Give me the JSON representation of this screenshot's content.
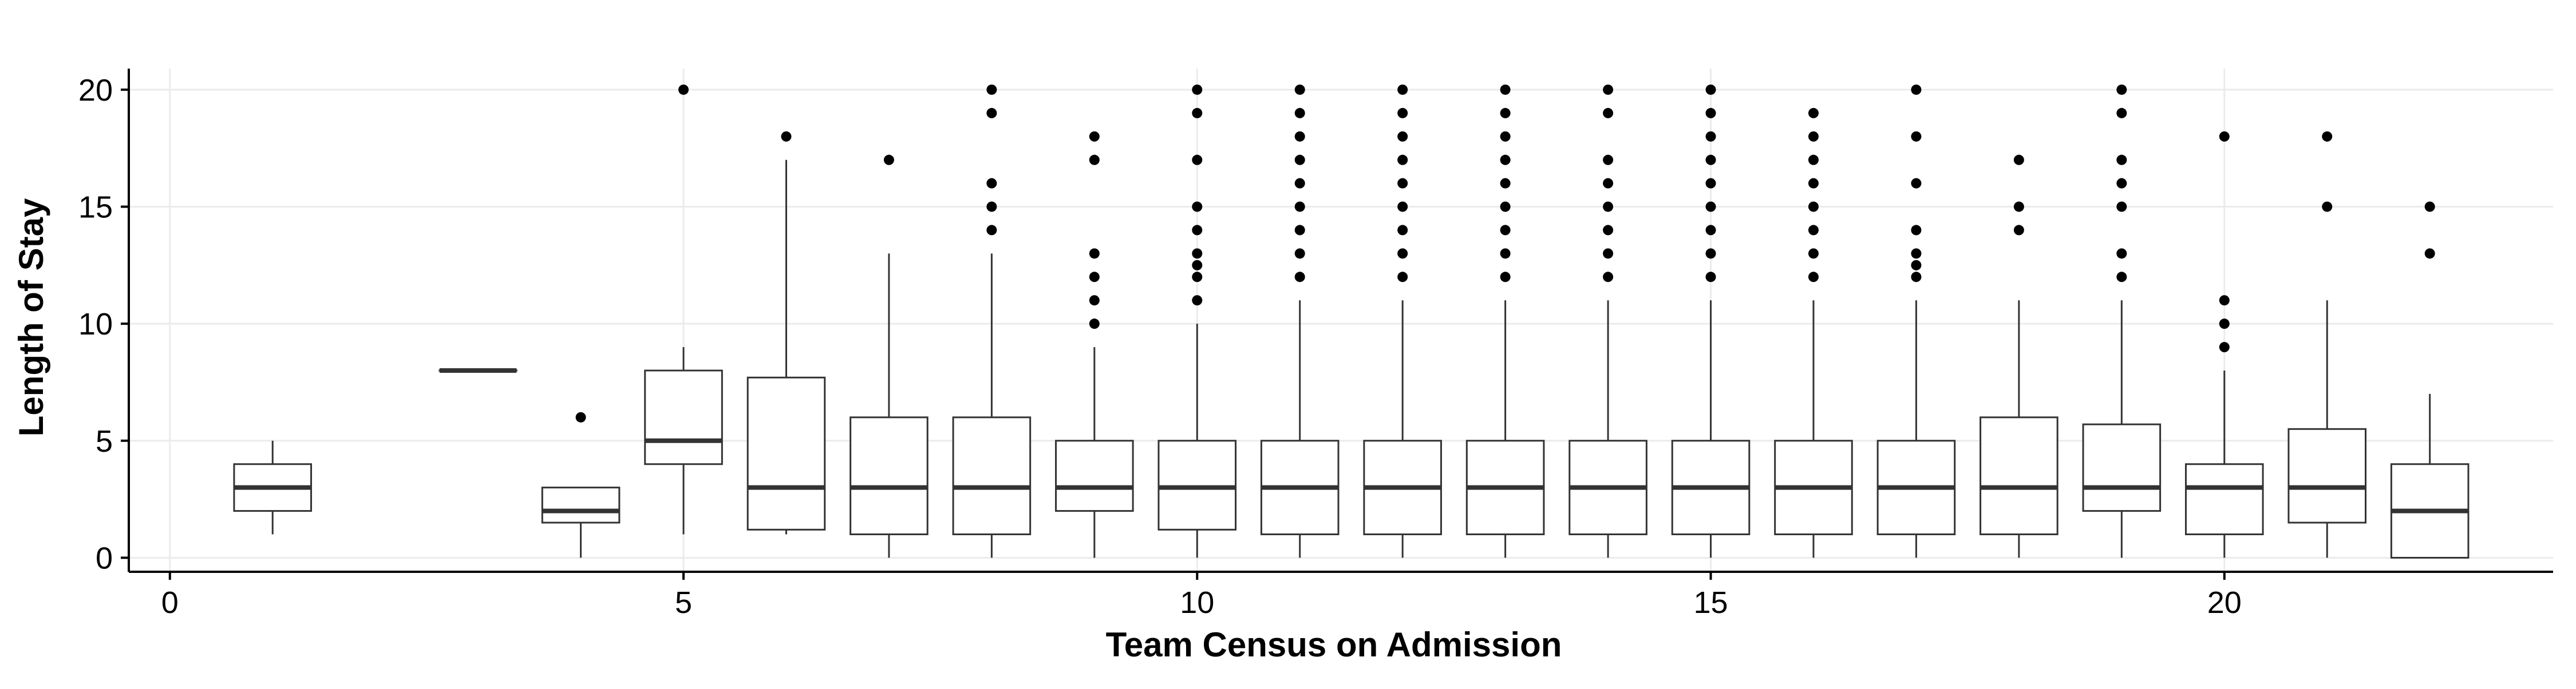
{
  "chart_data": {
    "type": "boxplot",
    "title": "",
    "xlabel": "Team Census on Admission",
    "ylabel": "Length of Stay",
    "xlim": [
      -0.4,
      23.2
    ],
    "ylim": [
      -0.6,
      20.9
    ],
    "xticks": [
      0,
      5,
      10,
      15,
      20
    ],
    "yticks": [
      0,
      5,
      10,
      15,
      20
    ],
    "grid": true,
    "legend": "none",
    "colors": {
      "box_fill": "#ffffff",
      "box_stroke": "#333333",
      "median": "#333333",
      "outlier": "#000000",
      "grid": "#ebebeb",
      "axis": "#000000"
    },
    "boxes": [
      {
        "x": 1,
        "q1": 2,
        "median": 3,
        "q3": 4,
        "low": 1,
        "high": 5,
        "outliers": []
      },
      {
        "x": 3,
        "q1": 8,
        "median": 8,
        "q3": 8,
        "low": 8,
        "high": 8,
        "outliers": []
      },
      {
        "x": 4,
        "q1": 1.5,
        "median": 2,
        "q3": 3,
        "low": 0,
        "high": 3,
        "outliers": [
          6
        ]
      },
      {
        "x": 5,
        "q1": 4,
        "median": 5,
        "q3": 8,
        "low": 1,
        "high": 9,
        "outliers": [
          20
        ]
      },
      {
        "x": 6,
        "q1": 1.2,
        "median": 3,
        "q3": 7.7,
        "low": 1,
        "high": 17,
        "outliers": [
          18
        ]
      },
      {
        "x": 7,
        "q1": 1,
        "median": 3,
        "q3": 6,
        "low": 0,
        "high": 13,
        "outliers": [
          17
        ]
      },
      {
        "x": 8,
        "q1": 1,
        "median": 3,
        "q3": 6,
        "low": 0,
        "high": 13,
        "outliers": [
          14,
          15,
          16,
          19,
          20
        ]
      },
      {
        "x": 9,
        "q1": 2,
        "median": 3,
        "q3": 5,
        "low": 0,
        "high": 9,
        "outliers": [
          10,
          11,
          12,
          13,
          17,
          18
        ]
      },
      {
        "x": 10,
        "q1": 1.2,
        "median": 3,
        "q3": 5,
        "low": 0,
        "high": 10,
        "outliers": [
          11,
          12,
          12.5,
          13,
          14,
          15,
          17,
          19,
          20
        ]
      },
      {
        "x": 11,
        "q1": 1,
        "median": 3,
        "q3": 5,
        "low": 0,
        "high": 11,
        "outliers": [
          12,
          13,
          14,
          15,
          16,
          17,
          18,
          19,
          20
        ]
      },
      {
        "x": 12,
        "q1": 1,
        "median": 3,
        "q3": 5,
        "low": 0,
        "high": 11,
        "outliers": [
          12,
          13,
          14,
          15,
          16,
          17,
          18,
          19,
          20
        ]
      },
      {
        "x": 13,
        "q1": 1,
        "median": 3,
        "q3": 5,
        "low": 0,
        "high": 11,
        "outliers": [
          12,
          13,
          14,
          15,
          16,
          17,
          18,
          19,
          20
        ]
      },
      {
        "x": 14,
        "q1": 1,
        "median": 3,
        "q3": 5,
        "low": 0,
        "high": 11,
        "outliers": [
          12,
          13,
          14,
          15,
          16,
          17,
          19,
          20
        ]
      },
      {
        "x": 15,
        "q1": 1,
        "median": 3,
        "q3": 5,
        "low": 0,
        "high": 11,
        "outliers": [
          12,
          13,
          14,
          15,
          16,
          17,
          18,
          19,
          20
        ]
      },
      {
        "x": 16,
        "q1": 1,
        "median": 3,
        "q3": 5,
        "low": 0,
        "high": 11,
        "outliers": [
          12,
          13,
          14,
          15,
          16,
          17,
          18,
          19
        ]
      },
      {
        "x": 17,
        "q1": 1,
        "median": 3,
        "q3": 5,
        "low": 0,
        "high": 11,
        "outliers": [
          12,
          12.5,
          13,
          14,
          16,
          18,
          20
        ]
      },
      {
        "x": 18,
        "q1": 1,
        "median": 3,
        "q3": 6,
        "low": 0,
        "high": 11,
        "outliers": [
          14,
          15,
          17
        ]
      },
      {
        "x": 19,
        "q1": 2,
        "median": 3,
        "q3": 5.7,
        "low": 0,
        "high": 11,
        "outliers": [
          12,
          13,
          15,
          16,
          17,
          19,
          20
        ]
      },
      {
        "x": 20,
        "q1": 1,
        "median": 3,
        "q3": 4,
        "low": 0,
        "high": 8,
        "outliers": [
          9,
          10,
          11,
          18
        ]
      },
      {
        "x": 21,
        "q1": 1.5,
        "median": 3,
        "q3": 5.5,
        "low": 0,
        "high": 11,
        "outliers": [
          15,
          18
        ]
      },
      {
        "x": 22,
        "q1": 0,
        "median": 2,
        "q3": 4,
        "low": 0,
        "high": 7,
        "outliers": [
          13,
          15
        ]
      }
    ]
  }
}
